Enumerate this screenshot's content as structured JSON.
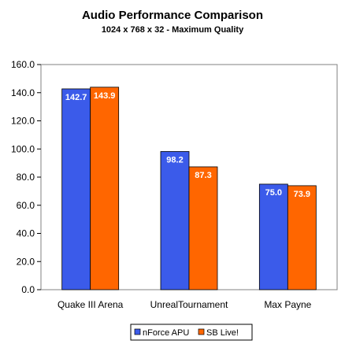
{
  "chart_data": {
    "type": "bar",
    "title": "Audio Performance Comparison",
    "subtitle": "1024 x 768 x 32 - Maximum Quality",
    "categories": [
      "Quake III Arena",
      "UnrealTournament",
      "Max Payne"
    ],
    "series": [
      {
        "name": "nForce APU",
        "values": [
          142.7,
          98.2,
          75.0
        ],
        "labels": [
          "142.7",
          "98.2",
          "75.0"
        ],
        "color": "#3b5bea"
      },
      {
        "name": "SB Live!",
        "values": [
          143.9,
          87.3,
          73.9
        ],
        "labels": [
          "143.9",
          "87.3",
          "73.9"
        ],
        "color": "#ff6600"
      }
    ],
    "ylim": [
      0,
      160
    ],
    "yticks": [
      "0.0",
      "20.0",
      "40.0",
      "60.0",
      "80.0",
      "100.0",
      "120.0",
      "140.0",
      "160.0"
    ],
    "grid": false,
    "legend_position": "bottom-center"
  }
}
